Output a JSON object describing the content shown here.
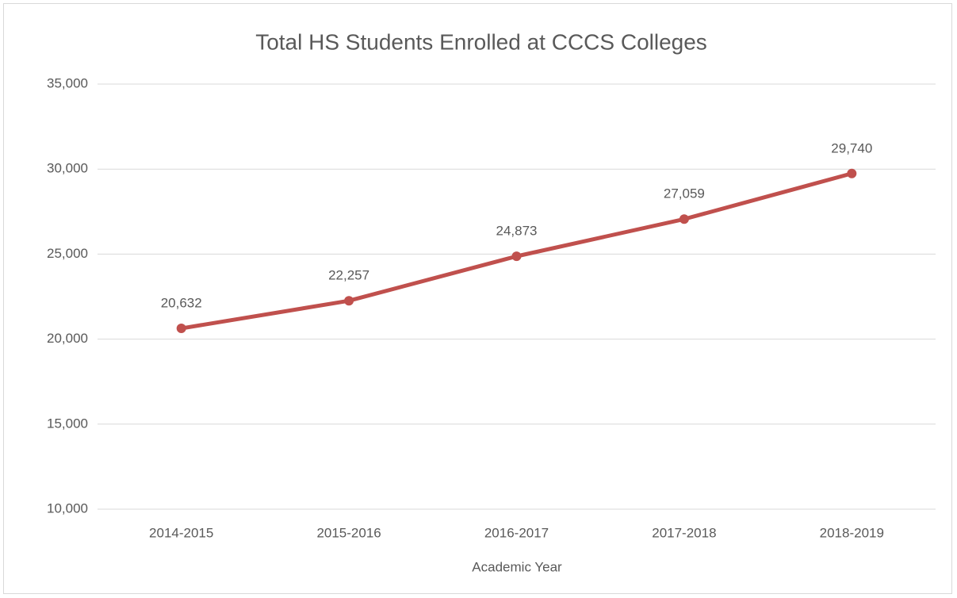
{
  "chart_data": {
    "type": "line",
    "title": "Total HS Students Enrolled at CCCS Colleges",
    "x_label": "Academic Year",
    "categories": [
      "2014-2015",
      "2015-2016",
      "2016-2017",
      "2017-2018",
      "2018-2019"
    ],
    "series": [
      {
        "color": "#c0504d",
        "values": [
          20632,
          22257,
          24873,
          27059,
          29740
        ],
        "value_labels": [
          "20,632",
          "22,257",
          "24,873",
          "27,059",
          "29,740"
        ]
      }
    ],
    "ylim": [
      10000,
      35000
    ],
    "yticks": [
      {
        "value": 10000,
        "label": "10,000"
      },
      {
        "value": 15000,
        "label": "15,000"
      },
      {
        "value": 20000,
        "label": "20,000"
      },
      {
        "value": 25000,
        "label": "25,000"
      },
      {
        "value": 30000,
        "label": "30,000"
      },
      {
        "value": 35000,
        "label": "35,000"
      }
    ],
    "grid": true
  }
}
